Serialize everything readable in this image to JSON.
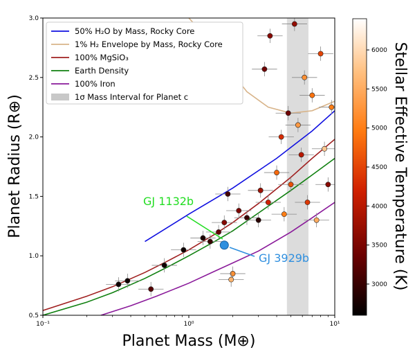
{
  "chart_data": {
    "type": "scatter",
    "xlabel": "Planet Mass (M⊕)",
    "ylabel": "Planet Radius (R⊕)",
    "colorbar_label": "Stellar Effective Temperature (K)",
    "xscale": "log",
    "xlim": [
      0.1,
      10
    ],
    "ylim": [
      0.5,
      3.0
    ],
    "x_tick_labels": [
      "10⁻¹",
      "10⁰",
      "10¹"
    ],
    "x_ticks": [
      0.1,
      1,
      10
    ],
    "y_ticks": [
      0.5,
      1.0,
      1.5,
      2.0,
      2.5,
      3.0
    ],
    "y_tick_labels": [
      "0.5",
      "1.0",
      "1.5",
      "2.0",
      "2.5",
      "3.0"
    ],
    "colorbar_ticks": [
      3000,
      3500,
      4000,
      4500,
      5000,
      5500,
      6000
    ],
    "colorbar_range": [
      2600,
      6400
    ],
    "shaded_band": {
      "label": "1σ Mass Interval for Planet c",
      "x_range": [
        4.7,
        6.6
      ],
      "color": "#d3d3d3"
    },
    "legend": [
      {
        "label": "50% H₂O by Mass, Rocky Core",
        "color": "#1010e0"
      },
      {
        "label": "1% H₂ Envelope by Mass, Rocky Core",
        "color": "#d8b48a"
      },
      {
        "label": "100% MgSiO₃",
        "color": "#a02020"
      },
      {
        "label": "Earth Density",
        "color": "#108010"
      },
      {
        "label": "100% Iron",
        "color": "#8a1a9a"
      },
      {
        "label": "1σ Mass Interval for Planet c",
        "color": "#c8c8c8"
      }
    ],
    "series": [
      {
        "name": "50% H₂O by Mass, Rocky Core",
        "color": "#1010e0",
        "x": [
          0.5,
          1.0,
          2.0,
          4.0,
          7.0,
          10.0
        ],
        "y": [
          1.12,
          1.35,
          1.57,
          1.82,
          2.05,
          2.22
        ]
      },
      {
        "name": "1% H₂ Envelope by Mass, Rocky Core",
        "color": "#d8b48a",
        "x": [
          1.0,
          1.3,
          1.8,
          2.5,
          3.5,
          5.0,
          7.0,
          10.0
        ],
        "y": [
          3.0,
          2.85,
          2.6,
          2.38,
          2.25,
          2.2,
          2.22,
          2.3
        ]
      },
      {
        "name": "100% MgSiO₃",
        "color": "#a02020",
        "x": [
          0.1,
          0.2,
          0.3,
          0.5,
          0.7,
          1.0,
          1.5,
          2.0,
          3.0,
          5.0,
          7.0,
          10.0
        ],
        "y": [
          0.54,
          0.66,
          0.74,
          0.86,
          0.95,
          1.05,
          1.18,
          1.28,
          1.44,
          1.66,
          1.82,
          1.98
        ]
      },
      {
        "name": "Earth Density",
        "color": "#108010",
        "x": [
          0.1,
          0.2,
          0.3,
          0.5,
          0.7,
          1.0,
          1.5,
          2.0,
          3.0,
          5.0,
          7.0,
          10.0
        ],
        "y": [
          0.5,
          0.61,
          0.69,
          0.81,
          0.9,
          1.0,
          1.12,
          1.21,
          1.36,
          1.55,
          1.68,
          1.82
        ]
      },
      {
        "name": "100% Iron",
        "color": "#8a1a9a",
        "x": [
          0.25,
          0.4,
          0.6,
          1.0,
          1.5,
          2.0,
          3.0,
          5.0,
          7.0,
          10.0
        ],
        "y": [
          0.5,
          0.58,
          0.66,
          0.77,
          0.87,
          0.94,
          1.04,
          1.2,
          1.32,
          1.45
        ]
      }
    ],
    "points": [
      {
        "x": 0.33,
        "y": 0.76,
        "t": 2700
      },
      {
        "x": 0.38,
        "y": 0.79,
        "t": 2700
      },
      {
        "x": 0.55,
        "y": 0.72,
        "t": 3200
      },
      {
        "x": 0.68,
        "y": 0.92,
        "t": 2700
      },
      {
        "x": 0.92,
        "y": 1.05,
        "t": 2700
      },
      {
        "x": 1.25,
        "y": 1.15,
        "t": 2800
      },
      {
        "x": 1.4,
        "y": 1.12,
        "t": 3000
      },
      {
        "x": 1.6,
        "y": 1.2,
        "t": 3300
      },
      {
        "x": 1.85,
        "y": 1.52,
        "t": 3100
      },
      {
        "x": 1.75,
        "y": 1.28,
        "t": 3600
      },
      {
        "x": 2.0,
        "y": 0.85,
        "t": 5200
      },
      {
        "x": 1.95,
        "y": 0.8,
        "t": 5600
      },
      {
        "x": 2.2,
        "y": 1.38,
        "t": 3500
      },
      {
        "x": 2.5,
        "y": 1.32,
        "t": 3000
      },
      {
        "x": 3.0,
        "y": 1.3,
        "t": 2900
      },
      {
        "x": 3.1,
        "y": 1.55,
        "t": 3800
      },
      {
        "x": 3.3,
        "y": 2.57,
        "t": 3400
      },
      {
        "x": 3.6,
        "y": 2.85,
        "t": 3600
      },
      {
        "x": 3.5,
        "y": 1.45,
        "t": 4200
      },
      {
        "x": 4.0,
        "y": 1.7,
        "t": 4800
      },
      {
        "x": 4.3,
        "y": 2.0,
        "t": 4300
      },
      {
        "x": 4.5,
        "y": 1.35,
        "t": 5000
      },
      {
        "x": 4.8,
        "y": 2.2,
        "t": 3400
      },
      {
        "x": 5.0,
        "y": 1.6,
        "t": 4600
      },
      {
        "x": 5.3,
        "y": 2.95,
        "t": 3700
      },
      {
        "x": 5.6,
        "y": 2.1,
        "t": 5300
      },
      {
        "x": 5.9,
        "y": 1.85,
        "t": 4000
      },
      {
        "x": 6.2,
        "y": 2.5,
        "t": 5200
      },
      {
        "x": 6.5,
        "y": 1.45,
        "t": 4400
      },
      {
        "x": 7.0,
        "y": 2.35,
        "t": 4900
      },
      {
        "x": 7.5,
        "y": 1.3,
        "t": 5500
      },
      {
        "x": 8.0,
        "y": 2.7,
        "t": 4500
      },
      {
        "x": 8.5,
        "y": 1.9,
        "t": 5800
      },
      {
        "x": 9.0,
        "y": 1.6,
        "t": 3600
      },
      {
        "x": 9.5,
        "y": 2.25,
        "t": 5000
      }
    ],
    "highlighted": [
      {
        "label": "GJ 3929b",
        "x": 1.75,
        "y": 1.09,
        "color": "#2f8fdf"
      }
    ],
    "annotations": [
      {
        "text": "GJ 1132b",
        "color": "#22dd22"
      },
      {
        "text": "GJ 3929b",
        "color": "#2f8fdf"
      }
    ],
    "grid": false,
    "legend_position": "top-left"
  }
}
